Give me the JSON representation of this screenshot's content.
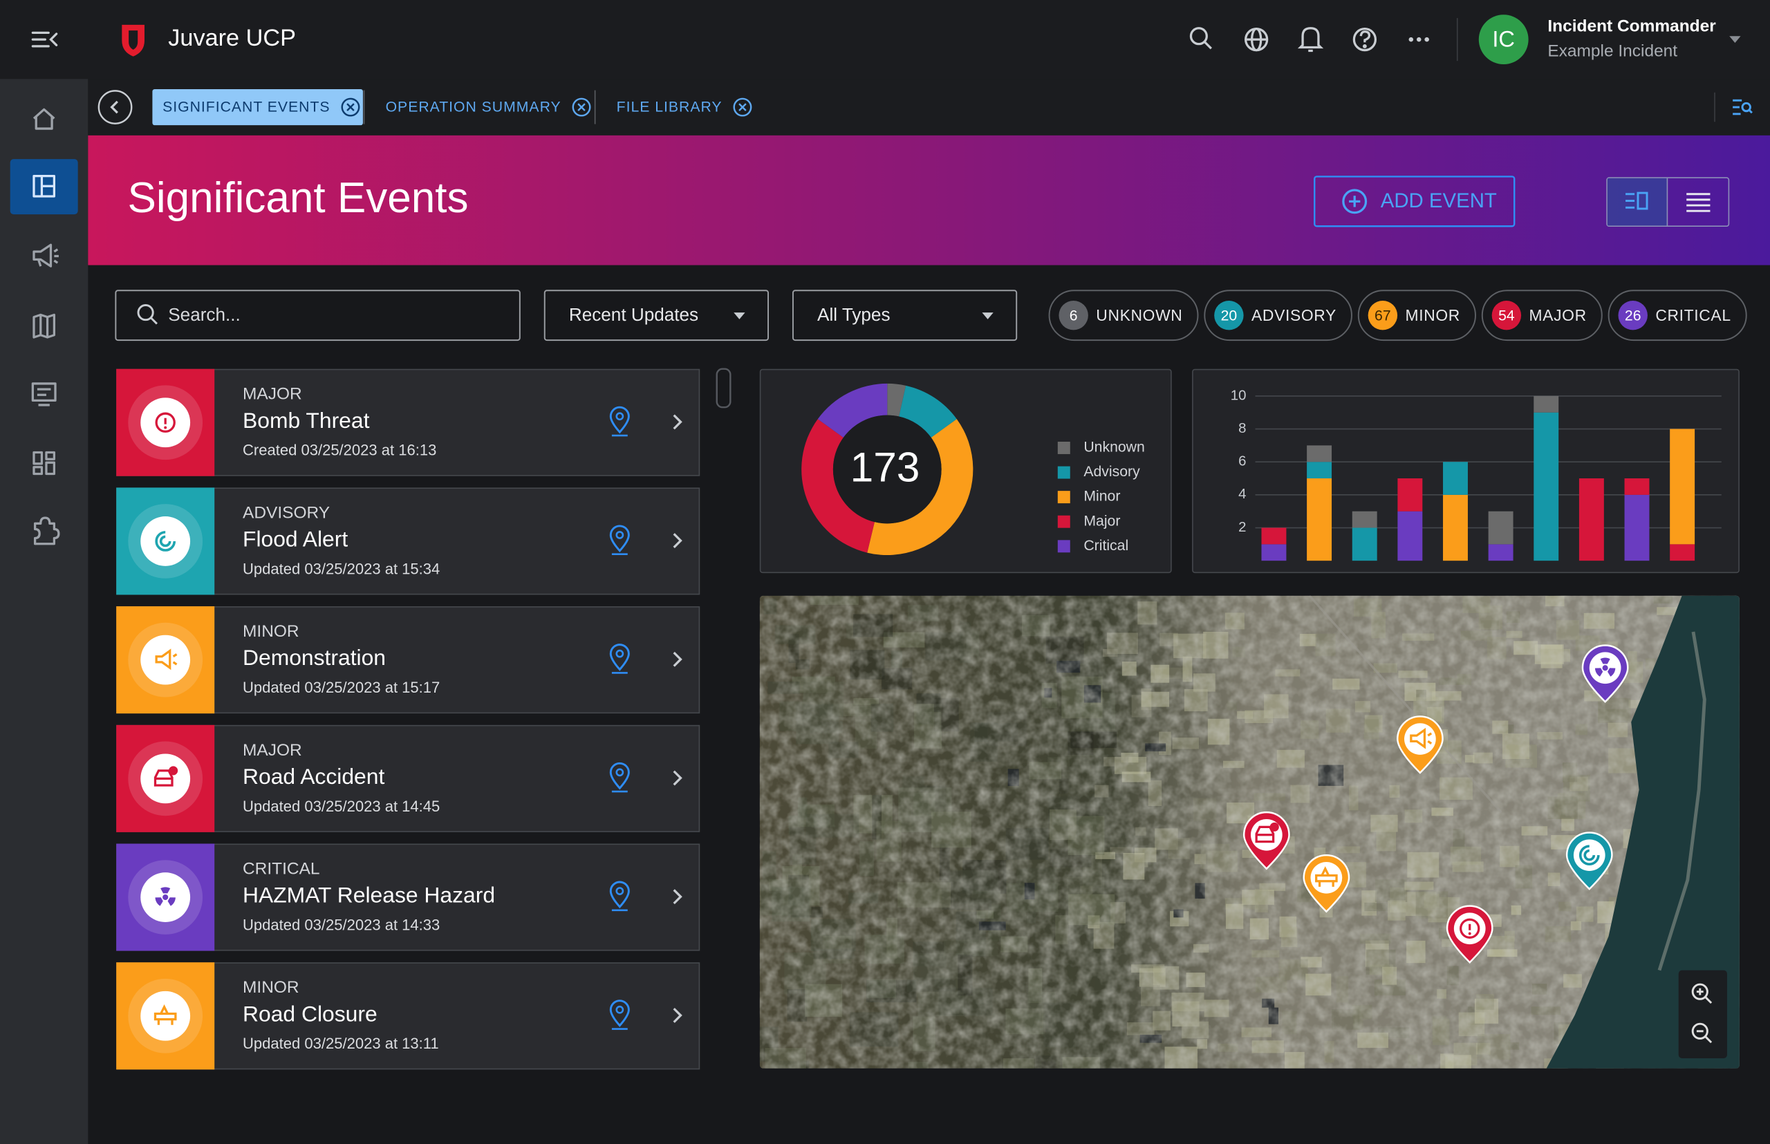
{
  "header": {
    "app_name": "Juvare UCP",
    "user_initials": "IC",
    "user_name": "Incident Commander",
    "user_incident": "Example Incident"
  },
  "tabs": [
    "SIGNIFICANT EVENTS",
    "OPERATION SUMMARY",
    "FILE LIBRARY"
  ],
  "page_title": "Significant Events",
  "add_event": "ADD EVENT",
  "filters": {
    "search_placeholder": "Search...",
    "sort": "Recent Updates",
    "type": "All Types"
  },
  "chips": [
    {
      "count": 6,
      "label": "UNKNOWN",
      "color": "#5f6166"
    },
    {
      "count": 20,
      "label": "ADVISORY",
      "color": "#1597a8"
    },
    {
      "count": 67,
      "label": "MINOR",
      "color": "#fb9d1a"
    },
    {
      "count": 54,
      "label": "MAJOR",
      "color": "#d6163a"
    },
    {
      "count": 26,
      "label": "CRITICAL",
      "color": "#6a3cc0"
    }
  ],
  "events": [
    {
      "severity": "MAJOR",
      "title": "Bomb Threat",
      "timestamp": "Created 03/25/2023 at 16:13",
      "color": "#d6163a"
    },
    {
      "severity": "ADVISORY",
      "title": "Flood Alert",
      "timestamp": "Updated 03/25/2023 at 15:34",
      "color": "#1ea5b0"
    },
    {
      "severity": "MINOR",
      "title": "Demonstration",
      "timestamp": "Updated 03/25/2023 at 15:17",
      "color": "#fb9d1a"
    },
    {
      "severity": "MAJOR",
      "title": "Road Accident",
      "timestamp": "Updated 03/25/2023 at 14:45",
      "color": "#d6163a"
    },
    {
      "severity": "CRITICAL",
      "title": "HAZMAT Release Hazard",
      "timestamp": "Updated 03/25/2023 at 14:33",
      "color": "#6a3cc0"
    },
    {
      "severity": "MINOR",
      "title": "Road Closure",
      "timestamp": "Updated 03/25/2023 at 13:11",
      "color": "#fb9d1a"
    }
  ],
  "chart_data": [
    {
      "type": "pie",
      "donut": true,
      "total": 173,
      "categories": [
        "Unknown",
        "Advisory",
        "Minor",
        "Major",
        "Critical"
      ],
      "values": [
        6,
        20,
        67,
        54,
        26
      ],
      "colors": [
        "#6b6b6b",
        "#1597a8",
        "#fb9d1a",
        "#d6163a",
        "#6a3cc0"
      ]
    },
    {
      "type": "bar",
      "stacked": true,
      "categories": [
        null,
        null,
        null,
        null,
        null,
        null,
        null,
        null,
        null,
        null
      ],
      "series": [
        {
          "color": "#6a3cc0",
          "values": [
            1,
            0,
            0,
            3,
            0,
            1,
            0,
            0,
            4,
            0
          ]
        },
        {
          "color": "#d6163a",
          "values": [
            1,
            0,
            0,
            2,
            0,
            0,
            0,
            5,
            1,
            1
          ]
        },
        {
          "color": "#fb9d1a",
          "values": [
            0,
            5,
            0,
            0,
            4,
            0,
            0,
            0,
            0,
            7
          ]
        },
        {
          "color": "#1597a8",
          "values": [
            0,
            1,
            2,
            0,
            2,
            0,
            9,
            0,
            0,
            0
          ]
        },
        {
          "color": "#6b6b6b",
          "values": [
            0,
            1,
            1,
            0,
            0,
            2,
            1,
            0,
            0,
            0
          ]
        }
      ],
      "ylim": [
        0,
        10
      ],
      "yticks": [
        2,
        4,
        6,
        8,
        10
      ],
      "grid": true
    }
  ]
}
